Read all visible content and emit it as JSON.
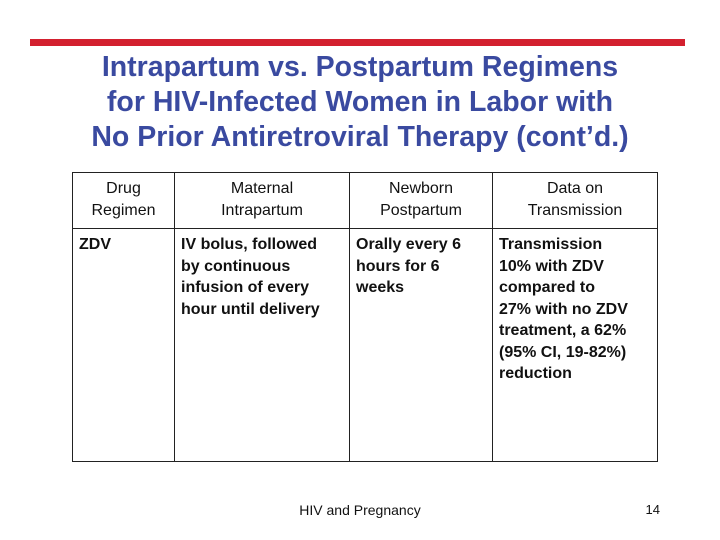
{
  "title": {
    "line1": "Intrapartum vs. Postpartum Regimens",
    "line2": "for HIV-Infected Women in Labor with",
    "line3": "No Prior Antiretroviral Therapy (cont’d.)"
  },
  "table": {
    "headers": [
      {
        "line1": "Drug",
        "line2": "Regimen"
      },
      {
        "line1": "Maternal",
        "line2": "Intrapartum"
      },
      {
        "line1": "Newborn",
        "line2": "Postpartum"
      },
      {
        "line1": "Data on",
        "line2": "Transmission"
      }
    ],
    "rows": [
      {
        "drug": [
          "ZDV"
        ],
        "maternal": [
          "IV bolus, followed",
          "by continuous",
          "infusion of every",
          "hour until delivery"
        ],
        "newborn": [
          "Orally every 6",
          "hours for 6",
          "weeks"
        ],
        "transmission": [
          "Transmission",
          "10% with ZDV",
          "compared to",
          "27% with no ZDV",
          "treatment, a 62%",
          "(95% CI, 19-82%)",
          "reduction"
        ]
      }
    ]
  },
  "footer": {
    "text": "HIV and Pregnancy",
    "slide_number": "14"
  },
  "colors": {
    "accent_bar": "#d3202f",
    "title": "#3a4aa0"
  }
}
